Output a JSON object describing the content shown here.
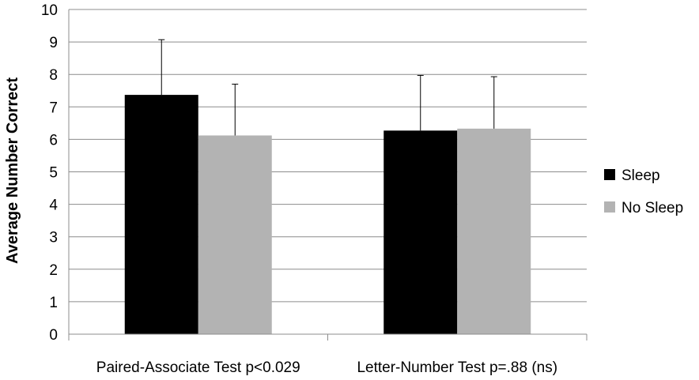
{
  "chart_data": {
    "type": "bar",
    "title": "",
    "xlabel": "",
    "ylabel": "Average Number Correct",
    "ylim": [
      0,
      10
    ],
    "yticks": [
      0,
      1,
      2,
      3,
      4,
      5,
      6,
      7,
      8,
      9,
      10
    ],
    "grid": true,
    "legend_position": "right",
    "categories": [
      "Paired-Associate Test p<0.029",
      "Letter-Number Test p=.88 (ns)"
    ],
    "series": [
      {
        "name": "Sleep",
        "color": "#000000",
        "values": [
          7.37,
          6.27
        ],
        "error_upper": [
          1.7,
          1.7
        ]
      },
      {
        "name": "No Sleep",
        "color": "#b3b3b3",
        "values": [
          6.12,
          6.33
        ],
        "error_upper": [
          1.58,
          1.6
        ]
      }
    ]
  }
}
